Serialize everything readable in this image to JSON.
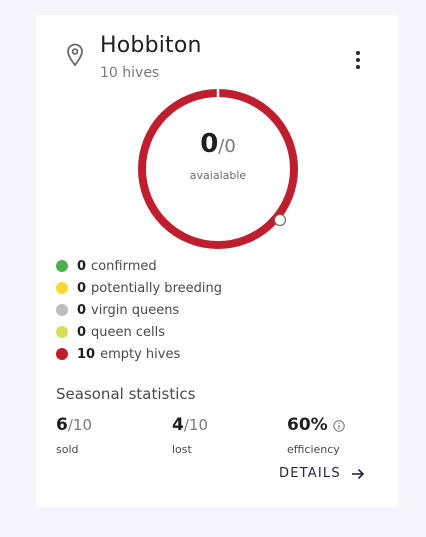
{
  "header": {
    "title": "Hobbiton",
    "subtitle": "10 hives"
  },
  "icons": {
    "location": "map-pin-icon",
    "menu": "more-vert-icon",
    "info": "info-icon",
    "arrow": "arrow-right-icon"
  },
  "donut": {
    "count": "0",
    "total": "/0",
    "label": "avaialable",
    "ring_color": "#be1e2d"
  },
  "legend": [
    {
      "value": "0",
      "label": "confirmed",
      "color": "#4caf50"
    },
    {
      "value": "0",
      "label": "potentially breeding",
      "color": "#fdd835"
    },
    {
      "value": "0",
      "label": "virgin queens",
      "color": "#bdbdbd"
    },
    {
      "value": "0",
      "label": "queen cells",
      "color": "#d4e157"
    },
    {
      "value": "10",
      "label": "empty hives",
      "color": "#be1e2d"
    }
  ],
  "stats": {
    "title": "Seasonal statistics",
    "sold": {
      "value": "6",
      "denominator": "/10",
      "label": "sold"
    },
    "lost": {
      "value": "4",
      "denominator": "/10",
      "label": "lost"
    },
    "efficiency": {
      "value": "60%",
      "label": "efficiency"
    }
  },
  "actions": {
    "details_label": "DETAILS"
  }
}
